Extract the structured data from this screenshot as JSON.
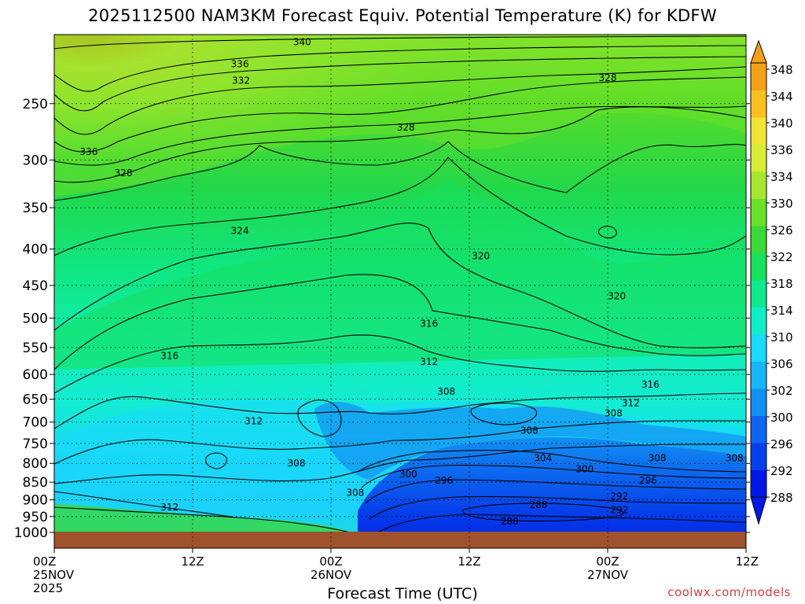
{
  "page": {
    "title": "2025112500 NAM3KM Forecast Equiv. Potential Temperature (K) for KDFW",
    "credit": "coolwx.com/models"
  },
  "colors": {
    "ground": "#a0522d",
    "scale": [
      "#0018e6",
      "#0640ea",
      "#0c66ee",
      "#1290f2",
      "#18b6f8",
      "#1ad8ff",
      "#10eec8",
      "#10e890",
      "#18e060",
      "#3ad838",
      "#6ae028",
      "#a6e630",
      "#d8ec38",
      "#f0e438",
      "#f6c020",
      "#f4a018"
    ]
  },
  "chart_data": {
    "type": "heatmap",
    "title": "2025112500 NAM3KM Forecast Equiv. Potential Temperature (K) for KDFW",
    "xlabel": "Forecast Time (UTC)",
    "ylabel": "",
    "x_ticks": [
      {
        "hour": 0,
        "label": "00Z",
        "sub": "25NOV",
        "sub2": "2025"
      },
      {
        "hour": 12,
        "label": "12Z"
      },
      {
        "hour": 24,
        "label": "00Z",
        "sub": "26NOV"
      },
      {
        "hour": 36,
        "label": "12Z"
      },
      {
        "hour": 48,
        "label": "00Z",
        "sub": "27NOV"
      },
      {
        "hour": 60,
        "label": "12Z"
      }
    ],
    "xlim": [
      0,
      60
    ],
    "y_ticks": [
      250,
      300,
      350,
      400,
      450,
      500,
      550,
      600,
      650,
      700,
      750,
      800,
      850,
      900,
      950,
      1000
    ],
    "ylim_hpa": [
      200,
      1000
    ],
    "ground_hpa": 1000,
    "colorbar_labels": [
      348,
      344,
      340,
      336,
      334,
      330,
      326,
      322,
      318,
      314,
      310,
      306,
      302,
      300,
      296,
      292,
      288
    ],
    "colorbar_range": [
      286,
      350
    ],
    "grid": true,
    "contour_labels": [
      {
        "text": "340",
        "hour": 21.5,
        "hpa": 205
      },
      {
        "text": "336",
        "hour": 16.1,
        "hpa": 220
      },
      {
        "text": "332",
        "hour": 16.2,
        "hpa": 232
      },
      {
        "text": "328",
        "hour": 48.0,
        "hpa": 230
      },
      {
        "text": "328",
        "hour": 30.5,
        "hpa": 270
      },
      {
        "text": "336",
        "hour": 3.0,
        "hpa": 292
      },
      {
        "text": "328",
        "hour": 6.0,
        "hpa": 313
      },
      {
        "text": "324",
        "hour": 16.1,
        "hpa": 377
      },
      {
        "text": "320",
        "hour": 37.0,
        "hpa": 409
      },
      {
        "text": "320",
        "hour": 48.8,
        "hpa": 466
      },
      {
        "text": "316",
        "hour": 32.5,
        "hpa": 509
      },
      {
        "text": "316",
        "hour": 10.0,
        "hpa": 565
      },
      {
        "text": "312",
        "hour": 32.5,
        "hpa": 576
      },
      {
        "text": "316",
        "hour": 51.7,
        "hpa": 620
      },
      {
        "text": "308",
        "hour": 34.0,
        "hpa": 634
      },
      {
        "text": "312",
        "hour": 50.0,
        "hpa": 658
      },
      {
        "text": "308",
        "hour": 48.5,
        "hpa": 680
      },
      {
        "text": "312",
        "hour": 17.3,
        "hpa": 698
      },
      {
        "text": "308",
        "hour": 41.2,
        "hpa": 719
      },
      {
        "text": "304",
        "hour": 42.4,
        "hpa": 786
      },
      {
        "text": "308",
        "hour": 52.3,
        "hpa": 786
      },
      {
        "text": "308",
        "hour": 59.0,
        "hpa": 786
      },
      {
        "text": "308",
        "hour": 21.0,
        "hpa": 800
      },
      {
        "text": "300",
        "hour": 46.0,
        "hpa": 815
      },
      {
        "text": "300",
        "hour": 30.7,
        "hpa": 828
      },
      {
        "text": "296",
        "hour": 33.8,
        "hpa": 845
      },
      {
        "text": "296",
        "hour": 51.5,
        "hpa": 845
      },
      {
        "text": "308",
        "hour": 26.1,
        "hpa": 880
      },
      {
        "text": "292",
        "hour": 49.0,
        "hpa": 890
      },
      {
        "text": "288",
        "hour": 42.0,
        "hpa": 915
      },
      {
        "text": "312",
        "hour": 10.0,
        "hpa": 922
      },
      {
        "text": "292",
        "hour": 49.0,
        "hpa": 930
      },
      {
        "text": "288",
        "hour": 39.5,
        "hpa": 965
      }
    ]
  }
}
